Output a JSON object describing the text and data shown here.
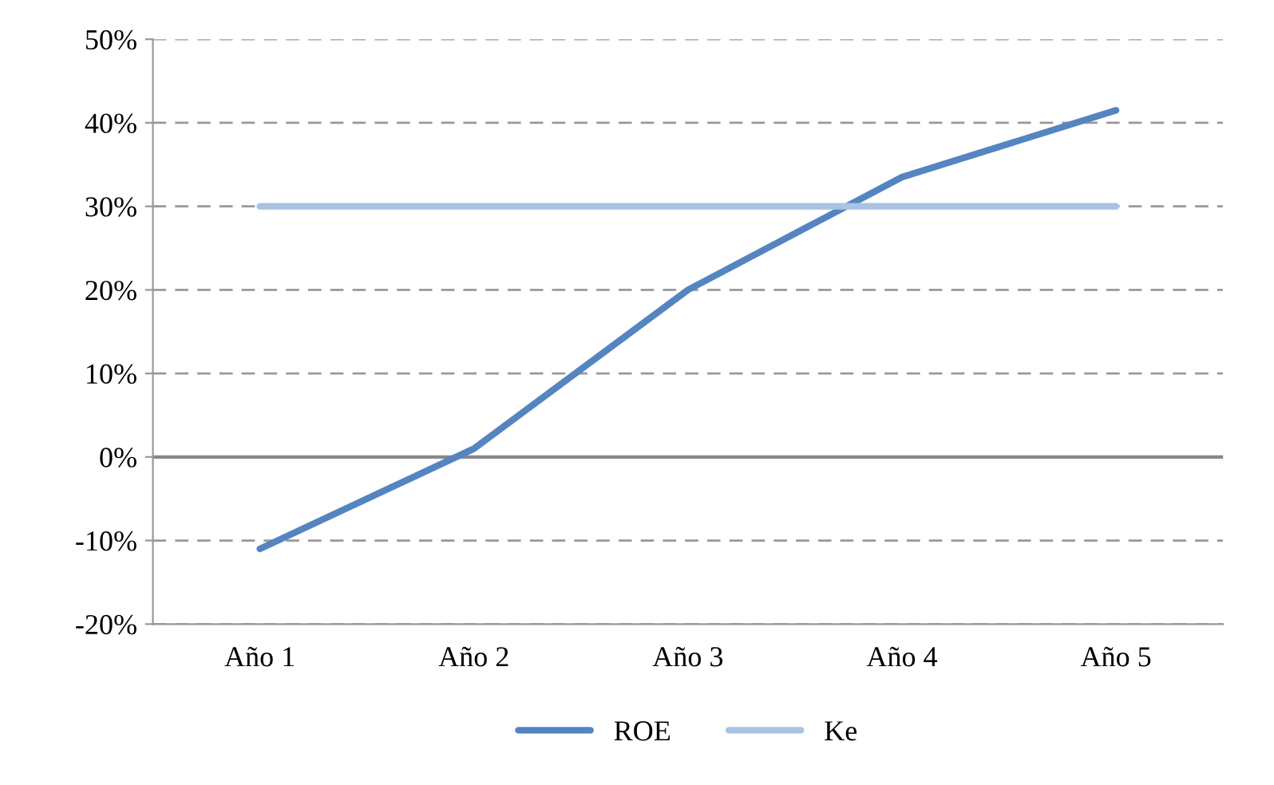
{
  "chart_data": {
    "type": "line",
    "categories": [
      "Año 1",
      "Año 2",
      "Año 3",
      "Año 4",
      "Año 5"
    ],
    "series": [
      {
        "name": "ROE",
        "color": "#5585c0",
        "values": [
          -11,
          1,
          20,
          33.5,
          41.5
        ]
      },
      {
        "name": "Ke",
        "color": "#a8c3e3",
        "values": [
          30,
          30,
          30,
          30,
          30
        ]
      }
    ],
    "ylim": [
      -20,
      50
    ],
    "yticks": [
      {
        "value": -20,
        "label": "-20%"
      },
      {
        "value": -10,
        "label": "-10%"
      },
      {
        "value": 0,
        "label": "0%"
      },
      {
        "value": 10,
        "label": "10%"
      },
      {
        "value": 20,
        "label": "20%"
      },
      {
        "value": 30,
        "label": "30%"
      },
      {
        "value": 40,
        "label": "40%"
      },
      {
        "value": 50,
        "label": "50%"
      }
    ],
    "ref_lines": [
      {
        "axis": "y",
        "value": 0,
        "color": "#888888"
      }
    ],
    "grid": "y",
    "legend": "bottom",
    "line_style": "solid",
    "marker": "none"
  }
}
